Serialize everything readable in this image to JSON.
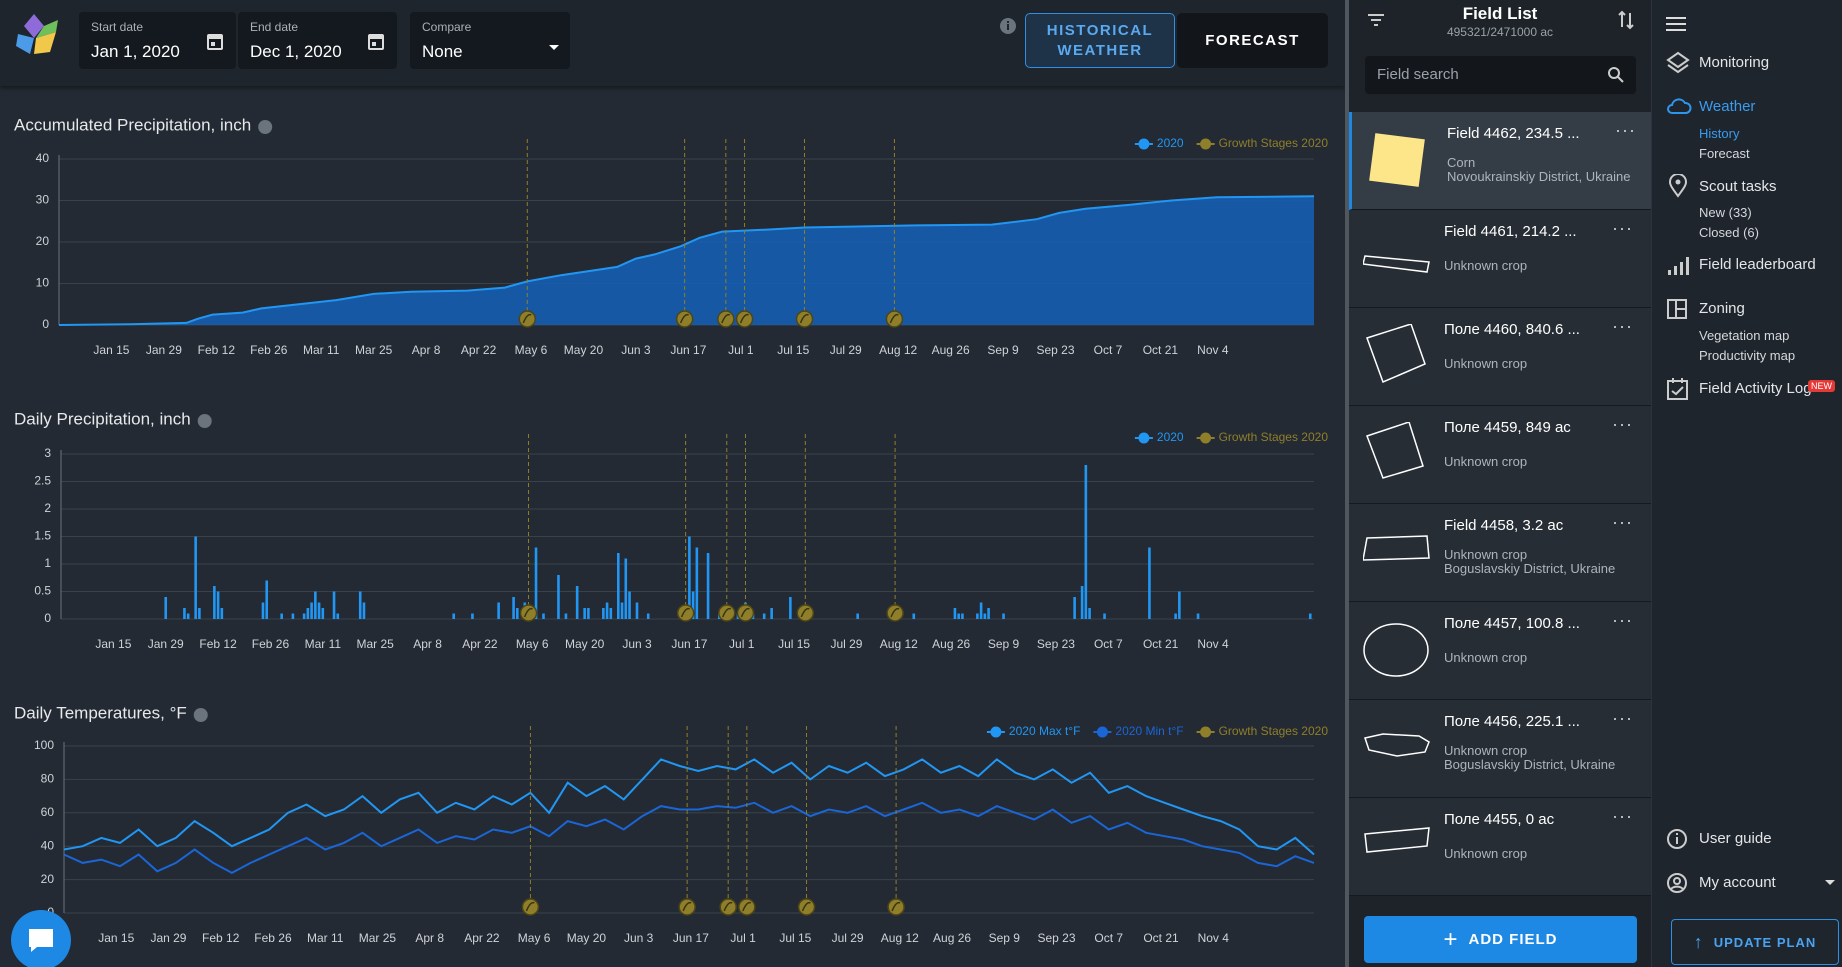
{
  "toolbar": {
    "start_label": "Start date",
    "start_value": "Jan 1, 2020",
    "end_label": "End date",
    "end_value": "Dec 1, 2020",
    "compare_label": "Compare",
    "compare_value": "None",
    "historical": "HISTORICAL WEATHER",
    "forecast": "FORECAST"
  },
  "chart_data": [
    {
      "type": "area",
      "title": "Accumulated Precipitation, inch",
      "x": [
        1,
        20,
        35,
        38,
        42,
        50,
        55,
        65,
        75,
        85,
        95,
        110,
        120,
        126,
        135,
        150,
        155,
        160,
        167,
        172,
        178,
        190,
        200,
        230,
        250,
        262,
        268,
        275,
        287,
        298,
        310,
        336
      ],
      "series": [
        {
          "name": "2020",
          "color": "#2196f3",
          "values": [
            0,
            0.2,
            0.5,
            1.5,
            2.5,
            3,
            4,
            5,
            6,
            7.5,
            8,
            8.3,
            9,
            10.5,
            12,
            14,
            16,
            17,
            19,
            21,
            22.5,
            23,
            23.5,
            24,
            24.2,
            25.5,
            27,
            28,
            29,
            30,
            30.8,
            31
          ]
        }
      ],
      "growth_stages": {
        "name": "Growth Stages 2020",
        "color": "#8f7f2a",
        "x": [
          126,
          168,
          179,
          184,
          200,
          224
        ]
      },
      "xlim": [
        1,
        336
      ],
      "ylim": [
        0,
        40
      ],
      "yticks": [
        0,
        10,
        20,
        30,
        40
      ],
      "grid": true,
      "xticks": [
        {
          "value": 15,
          "label": "Jan 15"
        },
        {
          "value": 29,
          "label": "Jan 29"
        },
        {
          "value": 43,
          "label": "Feb 12"
        },
        {
          "value": 57,
          "label": "Feb 26"
        },
        {
          "value": 71,
          "label": "Mar 11"
        },
        {
          "value": 85,
          "label": "Mar 25"
        },
        {
          "value": 99,
          "label": "Apr 8"
        },
        {
          "value": 113,
          "label": "Apr 22"
        },
        {
          "value": 127,
          "label": "May 6"
        },
        {
          "value": 141,
          "label": "May 20"
        },
        {
          "value": 155,
          "label": "Jun 3"
        },
        {
          "value": 169,
          "label": "Jun 17"
        },
        {
          "value": 183,
          "label": "Jul 1"
        },
        {
          "value": 197,
          "label": "Jul 15"
        },
        {
          "value": 211,
          "label": "Jul 29"
        },
        {
          "value": 225,
          "label": "Aug 12"
        },
        {
          "value": 239,
          "label": "Aug 26"
        },
        {
          "value": 253,
          "label": "Sep 9"
        },
        {
          "value": 267,
          "label": "Sep 23"
        },
        {
          "value": 281,
          "label": "Oct 7"
        },
        {
          "value": 295,
          "label": "Oct 21"
        },
        {
          "value": 309,
          "label": "Nov 4"
        }
      ]
    },
    {
      "type": "bar",
      "title": "Daily Precipitation, inch",
      "x": [
        29,
        34,
        35,
        37,
        38,
        42,
        43,
        44,
        55,
        56,
        60,
        63,
        66,
        67,
        68,
        69,
        70,
        71,
        74,
        75,
        81,
        82,
        106,
        111,
        118,
        122,
        123,
        125,
        126,
        127,
        128,
        130,
        134,
        136,
        139,
        141,
        142,
        146,
        147,
        148,
        150,
        151,
        152,
        153,
        155,
        158,
        167,
        169,
        170,
        171,
        174,
        177,
        182,
        184,
        186,
        189,
        191,
        196,
        200,
        214,
        224,
        229,
        240,
        241,
        242,
        246,
        247,
        248,
        249,
        253,
        272,
        274,
        275,
        276,
        280,
        292,
        299,
        300,
        305,
        335
      ],
      "series": [
        {
          "name": "2020",
          "color": "#2196f3",
          "values": [
            0.4,
            0.2,
            0.1,
            1.5,
            0.2,
            0.6,
            0.5,
            0.2,
            0.3,
            0.7,
            0.1,
            0.1,
            0.1,
            0.2,
            0.3,
            0.5,
            0.3,
            0.2,
            0.5,
            0.1,
            0.5,
            0.3,
            0.1,
            0.1,
            0.3,
            0.4,
            0.2,
            0.3,
            0.2,
            0.2,
            1.3,
            0.1,
            0.8,
            0.1,
            0.6,
            0.2,
            0.2,
            0.2,
            0.3,
            0.2,
            1.2,
            0.3,
            1.1,
            0.5,
            0.3,
            0.1,
            0.2,
            1.5,
            0.5,
            1.3,
            1.2,
            0.1,
            0.1,
            0.3,
            0.1,
            0.1,
            0.2,
            0.4,
            0.1,
            0.1,
            0.1,
            0.1,
            0.2,
            0.1,
            0.1,
            0.1,
            0.3,
            0.1,
            0.2,
            0.1,
            0.4,
            0.6,
            2.8,
            0.2,
            0.1,
            1.3,
            0.1,
            0.5,
            0.1,
            0.1
          ]
        }
      ],
      "growth_stages": {
        "name": "Growth Stages 2020",
        "color": "#8f7f2a",
        "x": [
          126,
          168,
          179,
          184,
          200,
          224
        ]
      },
      "xlim": [
        1,
        336
      ],
      "ylim": [
        0,
        3
      ],
      "yticks": [
        0,
        0.5,
        1,
        1.5,
        2,
        2.5,
        3
      ],
      "grid": true,
      "xticks": [
        {
          "value": 15,
          "label": "Jan 15"
        },
        {
          "value": 29,
          "label": "Jan 29"
        },
        {
          "value": 43,
          "label": "Feb 12"
        },
        {
          "value": 57,
          "label": "Feb 26"
        },
        {
          "value": 71,
          "label": "Mar 11"
        },
        {
          "value": 85,
          "label": "Mar 25"
        },
        {
          "value": 99,
          "label": "Apr 8"
        },
        {
          "value": 113,
          "label": "Apr 22"
        },
        {
          "value": 127,
          "label": "May 6"
        },
        {
          "value": 141,
          "label": "May 20"
        },
        {
          "value": 155,
          "label": "Jun 3"
        },
        {
          "value": 169,
          "label": "Jun 17"
        },
        {
          "value": 183,
          "label": "Jul 1"
        },
        {
          "value": 197,
          "label": "Jul 15"
        },
        {
          "value": 211,
          "label": "Jul 29"
        },
        {
          "value": 225,
          "label": "Aug 12"
        },
        {
          "value": 239,
          "label": "Aug 26"
        },
        {
          "value": 253,
          "label": "Sep 9"
        },
        {
          "value": 267,
          "label": "Sep 23"
        },
        {
          "value": 281,
          "label": "Oct 7"
        },
        {
          "value": 295,
          "label": "Oct 21"
        },
        {
          "value": 309,
          "label": "Nov 4"
        }
      ]
    },
    {
      "type": "line",
      "title": "Daily Temperatures, °F",
      "x": [
        1,
        6,
        11,
        16,
        21,
        26,
        31,
        36,
        41,
        46,
        51,
        56,
        61,
        66,
        71,
        76,
        81,
        86,
        91,
        96,
        101,
        106,
        111,
        116,
        121,
        126,
        131,
        136,
        141,
        146,
        151,
        156,
        161,
        166,
        171,
        176,
        181,
        186,
        191,
        196,
        201,
        206,
        211,
        216,
        221,
        226,
        231,
        236,
        241,
        246,
        251,
        256,
        261,
        266,
        271,
        276,
        281,
        286,
        291,
        296,
        301,
        306,
        311,
        316,
        321,
        326,
        331,
        336
      ],
      "series": [
        {
          "name": "2020 Max t°F",
          "color": "#2196f3",
          "values": [
            38,
            40,
            45,
            42,
            50,
            40,
            45,
            55,
            48,
            40,
            45,
            50,
            60,
            65,
            58,
            62,
            70,
            60,
            68,
            72,
            60,
            66,
            62,
            70,
            65,
            72,
            60,
            78,
            70,
            76,
            68,
            80,
            92,
            88,
            85,
            88,
            86,
            92,
            84,
            90,
            80,
            88,
            84,
            90,
            82,
            86,
            92,
            84,
            88,
            82,
            92,
            84,
            80,
            86,
            78,
            84,
            72,
            76,
            70,
            66,
            62,
            58,
            55,
            50,
            40,
            38,
            45,
            35
          ]
        },
        {
          "name": "2020 Min t°F",
          "color": "#1a66d6",
          "values": [
            35,
            30,
            32,
            28,
            35,
            25,
            30,
            38,
            30,
            24,
            30,
            35,
            40,
            45,
            38,
            42,
            48,
            40,
            45,
            50,
            42,
            46,
            44,
            50,
            48,
            52,
            46,
            55,
            52,
            56,
            50,
            58,
            64,
            62,
            62,
            64,
            63,
            66,
            60,
            64,
            58,
            62,
            60,
            64,
            58,
            62,
            66,
            60,
            62,
            58,
            64,
            60,
            56,
            62,
            54,
            58,
            50,
            54,
            48,
            46,
            44,
            40,
            38,
            36,
            30,
            28,
            34,
            30
          ]
        }
      ],
      "growth_stages": {
        "name": "Growth Stages 2020",
        "color": "#8f7f2a",
        "x": [
          126,
          168,
          179,
          184,
          200,
          224
        ]
      },
      "xlim": [
        1,
        336
      ],
      "ylim": [
        0,
        100
      ],
      "yticks": [
        0,
        20,
        40,
        60,
        80,
        100
      ],
      "grid": true,
      "xticks": [
        {
          "value": 15,
          "label": "Jan 15"
        },
        {
          "value": 29,
          "label": "Jan 29"
        },
        {
          "value": 43,
          "label": "Feb 12"
        },
        {
          "value": 57,
          "label": "Feb 26"
        },
        {
          "value": 71,
          "label": "Mar 11"
        },
        {
          "value": 85,
          "label": "Mar 25"
        },
        {
          "value": 99,
          "label": "Apr 8"
        },
        {
          "value": 113,
          "label": "Apr 22"
        },
        {
          "value": 127,
          "label": "May 6"
        },
        {
          "value": 141,
          "label": "May 20"
        },
        {
          "value": 155,
          "label": "Jun 3"
        },
        {
          "value": 169,
          "label": "Jun 17"
        },
        {
          "value": 183,
          "label": "Jul 1"
        },
        {
          "value": 197,
          "label": "Jul 15"
        },
        {
          "value": 211,
          "label": "Jul 29"
        },
        {
          "value": 225,
          "label": "Aug 12"
        },
        {
          "value": 239,
          "label": "Aug 26"
        },
        {
          "value": 253,
          "label": "Sep 9"
        },
        {
          "value": 267,
          "label": "Sep 23"
        },
        {
          "value": 281,
          "label": "Oct 7"
        },
        {
          "value": 295,
          "label": "Oct 21"
        },
        {
          "value": 309,
          "label": "Nov 4"
        }
      ]
    }
  ],
  "field_list": {
    "title": "Field List",
    "area": "495321/2471000 ac",
    "search": "Field search",
    "fields": [
      {
        "name": "Field 4462, 234.5 ...",
        "crop": "Corn",
        "location": "Novoukrainskiy District, Ukraine"
      },
      {
        "name": "Field 4461, 214.2 ...",
        "crop": "Unknown crop"
      },
      {
        "name": "Поле 4460, 840.6 ...",
        "crop": "Unknown crop"
      },
      {
        "name": "Поле 4459, 849 ac",
        "crop": "Unknown crop"
      },
      {
        "name": "Field 4458, 3.2 ac",
        "crop": "Unknown crop",
        "location": "Boguslavskiy District, Ukraine"
      },
      {
        "name": "Поле 4457, 100.8 ...",
        "crop": "Unknown crop"
      },
      {
        "name": "Поле 4456, 225.1 ...",
        "crop": "Unknown crop",
        "location": "Boguslavskiy District, Ukraine"
      },
      {
        "name": "Поле 4455, 0 ac",
        "crop": "Unknown crop"
      }
    ],
    "add": "ADD FIELD"
  },
  "nav": {
    "monitoring": "Monitoring",
    "weather": "Weather",
    "history": "History",
    "forecast": "Forecast",
    "scout": "Scout tasks",
    "scout_new": "New (33)",
    "scout_closed": "Closed (6)",
    "leaderboard": "Field leaderboard",
    "zoning": "Zoning",
    "vegetation": "Vegetation map",
    "productivity": "Productivity map",
    "activity": "Field Activity Log",
    "badge": "NEW",
    "guide": "User guide",
    "account": "My account",
    "upgrade": "UPDATE PLAN"
  }
}
